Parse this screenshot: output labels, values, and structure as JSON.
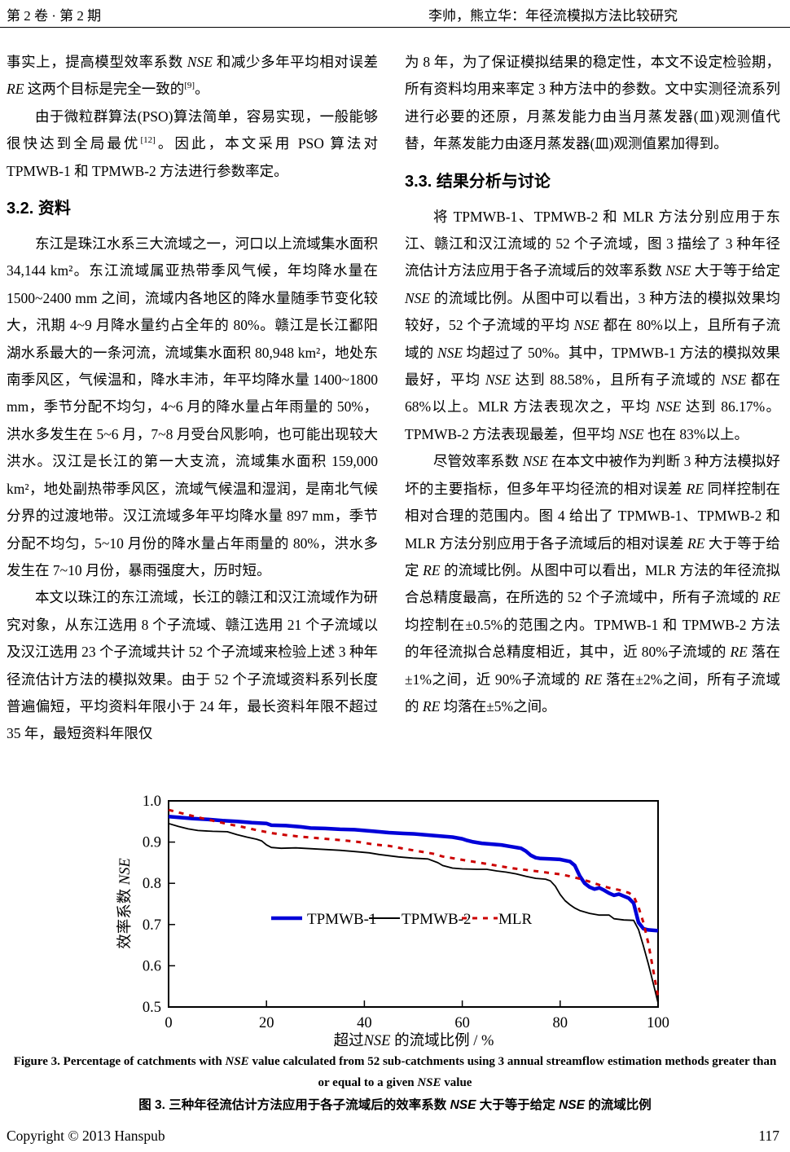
{
  "header": {
    "issue": "第 2 卷 · 第 2 期",
    "running_title": "李帅，熊立华：年径流模拟方法比较研究"
  },
  "left_column": {
    "blocks": [
      {
        "type": "paragraph",
        "indent": false,
        "text": "事实上，提高模型效率系数 NSE 和减少多年平均相对误差 RE 这两个目标是完全一致的[9]。"
      },
      {
        "type": "paragraph",
        "indent": true,
        "text": "由于微粒群算法(PSO)算法简单，容易实现，一般能够很快达到全局最优[12]。因此，本文采用 PSO 算法对 TPMWB-1 和 TPMWB-2 方法进行参数率定。"
      },
      {
        "type": "heading",
        "text": "3.2. 资料"
      },
      {
        "type": "paragraph",
        "indent": true,
        "text": "东江是珠江水系三大流域之一，河口以上流域集水面积 34,144 km²。东江流域属亚热带季风气候，年均降水量在 1500~2400 mm 之间，流域内各地区的降水量随季节变化较大，汛期 4~9 月降水量约占全年的 80%。赣江是长江鄱阳湖水系最大的一条河流，流域集水面积 80,948 km²，地处东南季风区，气候温和，降水丰沛，年平均降水量 1400~1800 mm，季节分配不均匀，4~6 月的降水量占年雨量的 50%，洪水多发生在 5~6 月，7~8 月受台风影响，也可能出现较大洪水。汉江是长江的第一大支流，流域集水面积 159,000 km²，地处副热带季风区，流域气候温和湿润，是南北气候分界的过渡地带。汉江流域多年平均降水量 897 mm，季节分配不均匀，5~10 月份的降水量占年雨量的 80%，洪水多发生在 7~10 月份，暴雨强度大，历时短。"
      },
      {
        "type": "paragraph",
        "indent": true,
        "text": "本文以珠江的东江流域，长江的赣江和汉江流域作为研究对象，从东江选用 8 个子流域、赣江选用 21 个子流域以及汉江选用 23 个子流域共计 52 个子流域来检验上述 3 种年径流估计方法的模拟效果。由于 52 个子流域资料系列长度普遍偏短，平均资料年限小于 24 年，最长资料年限不超过 35 年，最短资料年限仅"
      }
    ]
  },
  "right_column": {
    "blocks": [
      {
        "type": "paragraph",
        "indent": false,
        "text": "为 8 年，为了保证模拟结果的稳定性，本文不设定检验期，所有资料均用来率定 3 种方法中的参数。文中实测径流系列进行必要的还原，月蒸发能力由当月蒸发器(皿)观测值代替，年蒸发能力由逐月蒸发器(皿)观测值累加得到。"
      },
      {
        "type": "heading",
        "text": "3.3. 结果分析与讨论"
      },
      {
        "type": "paragraph",
        "indent": true,
        "text": "将 TPMWB-1、TPMWB-2 和 MLR 方法分别应用于东江、赣江和汉江流域的 52 个子流域，图 3 描绘了 3 种年径流估计方法应用于各子流域后的效率系数 NSE 大于等于给定 NSE 的流域比例。从图中可以看出，3 种方法的模拟效果均较好，52 个子流域的平均 NSE 都在 80%以上，且所有子流域的 NSE 均超过了 50%。其中，TPMWB-1 方法的模拟效果最好，平均 NSE 达到 88.58%，且所有子流域的 NSE 都在 68%以上。MLR 方法表现次之，平均 NSE 达到 86.17%。TPMWB-2 方法表现最差，但平均 NSE 也在 83%以上。"
      },
      {
        "type": "paragraph",
        "indent": true,
        "text": "尽管效率系数 NSE 在本文中被作为判断 3 种方法模拟好坏的主要指标，但多年平均径流的相对误差 RE 同样控制在相对合理的范围内。图 4 给出了 TPMWB-1、TPMWB-2 和 MLR 方法分别应用于各子流域后的相对误差 RE 大于等于给定 RE 的流域比例。从图中可以看出，MLR 方法的年径流拟合总精度最高，在所选的 52 个子流域中，所有子流域的 RE 均控制在±0.5%的范围之内。TPMWB-1 和 TPMWB-2 方法的年径流拟合总精度相近，其中，近 80%子流域的 RE 落在±1%之间，近 90%子流域的 RE 落在±2%之间，所有子流域的 RE 均落在±5%之间。"
      }
    ]
  },
  "figure": {
    "caption_en": "Figure 3. Percentage of catchments with NSE value calculated from 52 sub-catchments using 3 annual streamflow estimation methods greater than or equal to a given NSE value",
    "caption_zh": "图 3. 三种年径流估计方法应用于各子流域后的效率系数 NSE 大于等于给定 NSE 的流域比例"
  },
  "footer": {
    "copyright": "Copyright © 2013 Hanspub",
    "page_number": "117"
  },
  "chart_data": {
    "type": "line",
    "title": "",
    "xlabel": "超过NSE 的流域比例 / %",
    "ylabel": "效率系数 NSE",
    "xlim": [
      0,
      100
    ],
    "ylim": [
      0.5,
      1.0
    ],
    "x_ticks": [
      0,
      20,
      40,
      60,
      80,
      100
    ],
    "y_ticks": [
      0.5,
      0.6,
      0.7,
      0.8,
      0.9,
      1.0
    ],
    "grid": false,
    "legend_position": "inside-center",
    "series": [
      {
        "name": "TPMWB-1",
        "color": "#0000d8",
        "width": 4.5,
        "dash": null,
        "points": [
          [
            0,
            0.962
          ],
          [
            2,
            0.96
          ],
          [
            5,
            0.957
          ],
          [
            8,
            0.955
          ],
          [
            11,
            0.952
          ],
          [
            14,
            0.95
          ],
          [
            17,
            0.947
          ],
          [
            20,
            0.945
          ],
          [
            21,
            0.941
          ],
          [
            24,
            0.94
          ],
          [
            27,
            0.937
          ],
          [
            29,
            0.934
          ],
          [
            32,
            0.933
          ],
          [
            35,
            0.931
          ],
          [
            38,
            0.93
          ],
          [
            40,
            0.928
          ],
          [
            42,
            0.926
          ],
          [
            45,
            0.923
          ],
          [
            48,
            0.921
          ],
          [
            50,
            0.92
          ],
          [
            53,
            0.917
          ],
          [
            56,
            0.914
          ],
          [
            58,
            0.912
          ],
          [
            60,
            0.908
          ],
          [
            61,
            0.904
          ],
          [
            62,
            0.901
          ],
          [
            64,
            0.897
          ],
          [
            66,
            0.895
          ],
          [
            68,
            0.893
          ],
          [
            70,
            0.889
          ],
          [
            72,
            0.885
          ],
          [
            73,
            0.878
          ],
          [
            74,
            0.868
          ],
          [
            75,
            0.862
          ],
          [
            76,
            0.86
          ],
          [
            78,
            0.859
          ],
          [
            80,
            0.858
          ],
          [
            82,
            0.853
          ],
          [
            83,
            0.843
          ],
          [
            84,
            0.818
          ],
          [
            85,
            0.8
          ],
          [
            86,
            0.791
          ],
          [
            87,
            0.786
          ],
          [
            88,
            0.789
          ],
          [
            89,
            0.783
          ],
          [
            90,
            0.776
          ],
          [
            91,
            0.771
          ],
          [
            92,
            0.774
          ],
          [
            93,
            0.769
          ],
          [
            94,
            0.764
          ],
          [
            95,
            0.752
          ],
          [
            96,
            0.705
          ],
          [
            97,
            0.69
          ],
          [
            98,
            0.687
          ],
          [
            100,
            0.685
          ]
        ]
      },
      {
        "name": "TPMWB-2",
        "color": "#000000",
        "width": 1.8,
        "dash": null,
        "points": [
          [
            0,
            0.945
          ],
          [
            2,
            0.938
          ],
          [
            4,
            0.932
          ],
          [
            6,
            0.928
          ],
          [
            9,
            0.926
          ],
          [
            12,
            0.925
          ],
          [
            14,
            0.918
          ],
          [
            16,
            0.912
          ],
          [
            18,
            0.907
          ],
          [
            19,
            0.903
          ],
          [
            20,
            0.893
          ],
          [
            21,
            0.887
          ],
          [
            23,
            0.885
          ],
          [
            26,
            0.886
          ],
          [
            29,
            0.884
          ],
          [
            32,
            0.882
          ],
          [
            35,
            0.88
          ],
          [
            38,
            0.877
          ],
          [
            41,
            0.874
          ],
          [
            43,
            0.87
          ],
          [
            45,
            0.867
          ],
          [
            47,
            0.864
          ],
          [
            50,
            0.861
          ],
          [
            53,
            0.859
          ],
          [
            55,
            0.85
          ],
          [
            56,
            0.843
          ],
          [
            58,
            0.837
          ],
          [
            60,
            0.835
          ],
          [
            63,
            0.834
          ],
          [
            65,
            0.834
          ],
          [
            67,
            0.83
          ],
          [
            69,
            0.827
          ],
          [
            71,
            0.823
          ],
          [
            73,
            0.817
          ],
          [
            75,
            0.812
          ],
          [
            77,
            0.81
          ],
          [
            78,
            0.806
          ],
          [
            79,
            0.793
          ],
          [
            80,
            0.773
          ],
          [
            81,
            0.758
          ],
          [
            82,
            0.748
          ],
          [
            83,
            0.74
          ],
          [
            84,
            0.734
          ],
          [
            86,
            0.727
          ],
          [
            88,
            0.723
          ],
          [
            90,
            0.723
          ],
          [
            91,
            0.714
          ],
          [
            93,
            0.711
          ],
          [
            95,
            0.71
          ],
          [
            96,
            0.688
          ],
          [
            97,
            0.648
          ],
          [
            98,
            0.605
          ],
          [
            99,
            0.558
          ],
          [
            100,
            0.51
          ]
        ]
      },
      {
        "name": "MLR",
        "color": "#cc0000",
        "width": 3,
        "dash": "6 7",
        "points": [
          [
            0,
            0.978
          ],
          [
            3,
            0.969
          ],
          [
            6,
            0.96
          ],
          [
            9,
            0.952
          ],
          [
            12,
            0.944
          ],
          [
            15,
            0.937
          ],
          [
            18,
            0.929
          ],
          [
            21,
            0.922
          ],
          [
            24,
            0.917
          ],
          [
            27,
            0.913
          ],
          [
            30,
            0.91
          ],
          [
            33,
            0.907
          ],
          [
            36,
            0.904
          ],
          [
            39,
            0.9
          ],
          [
            42,
            0.894
          ],
          [
            45,
            0.891
          ],
          [
            48,
            0.884
          ],
          [
            51,
            0.878
          ],
          [
            54,
            0.872
          ],
          [
            56,
            0.865
          ],
          [
            58,
            0.861
          ],
          [
            60,
            0.857
          ],
          [
            62,
            0.853
          ],
          [
            64,
            0.849
          ],
          [
            66,
            0.845
          ],
          [
            68,
            0.841
          ],
          [
            70,
            0.837
          ],
          [
            72,
            0.834
          ],
          [
            74,
            0.831
          ],
          [
            76,
            0.828
          ],
          [
            78,
            0.825
          ],
          [
            80,
            0.822
          ],
          [
            82,
            0.817
          ],
          [
            84,
            0.811
          ],
          [
            86,
            0.804
          ],
          [
            88,
            0.796
          ],
          [
            90,
            0.789
          ],
          [
            92,
            0.784
          ],
          [
            94,
            0.777
          ],
          [
            95,
            0.769
          ],
          [
            96,
            0.742
          ],
          [
            97,
            0.705
          ],
          [
            98,
            0.655
          ],
          [
            99,
            0.59
          ],
          [
            100,
            0.525
          ]
        ]
      }
    ]
  }
}
